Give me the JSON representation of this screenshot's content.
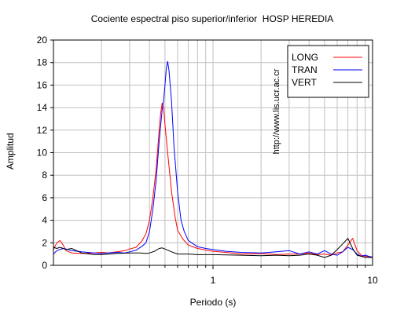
{
  "chart_data": {
    "type": "line",
    "title": "Cociente espectral piso superior/inferior  HOSP HEREDIA",
    "xlabel": "Periodo (s)",
    "ylabel": "Amplitud",
    "x_scale": "log",
    "xlim": [
      0.1,
      10
    ],
    "ylim": [
      0,
      20
    ],
    "x_ticks": [
      {
        "value": 1,
        "label": "1"
      },
      {
        "value": 10,
        "label": "10"
      }
    ],
    "y_ticks": [
      0,
      2,
      4,
      6,
      8,
      10,
      12,
      14,
      16,
      18,
      20
    ],
    "grid": true,
    "legend_position": "top-right",
    "series": [
      {
        "name": "LONG",
        "color": "#ff0000",
        "points": [
          [
            0.1,
            1.4
          ],
          [
            0.105,
            2.0
          ],
          [
            0.11,
            2.2
          ],
          [
            0.115,
            1.8
          ],
          [
            0.12,
            1.3
          ],
          [
            0.13,
            1.1
          ],
          [
            0.15,
            1.05
          ],
          [
            0.18,
            1.1
          ],
          [
            0.2,
            1.15
          ],
          [
            0.22,
            1.1
          ],
          [
            0.25,
            1.2
          ],
          [
            0.28,
            1.3
          ],
          [
            0.3,
            1.45
          ],
          [
            0.33,
            1.6
          ],
          [
            0.36,
            2.2
          ],
          [
            0.38,
            2.8
          ],
          [
            0.4,
            4.0
          ],
          [
            0.42,
            6.0
          ],
          [
            0.44,
            8.5
          ],
          [
            0.46,
            12.0
          ],
          [
            0.47,
            13.5
          ],
          [
            0.48,
            14.4
          ],
          [
            0.49,
            14.0
          ],
          [
            0.5,
            12.5
          ],
          [
            0.52,
            10.0
          ],
          [
            0.55,
            6.5
          ],
          [
            0.58,
            4.2
          ],
          [
            0.6,
            3.1
          ],
          [
            0.65,
            2.3
          ],
          [
            0.7,
            1.8
          ],
          [
            0.8,
            1.5
          ],
          [
            0.9,
            1.35
          ],
          [
            1.0,
            1.25
          ],
          [
            1.2,
            1.15
          ],
          [
            1.5,
            1.0
          ],
          [
            2.0,
            1.05
          ],
          [
            2.5,
            0.95
          ],
          [
            3.0,
            1.0
          ],
          [
            3.5,
            1.0
          ],
          [
            4.0,
            1.1
          ],
          [
            4.5,
            0.95
          ],
          [
            5.0,
            1.0
          ],
          [
            5.5,
            0.9
          ],
          [
            6.0,
            1.1
          ],
          [
            6.5,
            1.2
          ],
          [
            7.0,
            1.8
          ],
          [
            7.5,
            2.4
          ],
          [
            8.0,
            1.3
          ],
          [
            8.5,
            0.9
          ],
          [
            9.0,
            0.8
          ],
          [
            10.0,
            0.75
          ]
        ]
      },
      {
        "name": "TRAN",
        "color": "#0000ff",
        "points": [
          [
            0.1,
            1.0
          ],
          [
            0.105,
            1.3
          ],
          [
            0.11,
            1.4
          ],
          [
            0.115,
            1.5
          ],
          [
            0.12,
            1.45
          ],
          [
            0.13,
            1.3
          ],
          [
            0.15,
            1.2
          ],
          [
            0.18,
            1.1
          ],
          [
            0.2,
            1.05
          ],
          [
            0.22,
            1.1
          ],
          [
            0.25,
            1.15
          ],
          [
            0.28,
            1.1
          ],
          [
            0.3,
            1.2
          ],
          [
            0.33,
            1.35
          ],
          [
            0.36,
            1.7
          ],
          [
            0.38,
            2.0
          ],
          [
            0.4,
            3.0
          ],
          [
            0.42,
            5.0
          ],
          [
            0.44,
            7.5
          ],
          [
            0.46,
            11.0
          ],
          [
            0.48,
            13.8
          ],
          [
            0.49,
            14.6
          ],
          [
            0.5,
            16.0
          ],
          [
            0.51,
            17.5
          ],
          [
            0.52,
            18.1
          ],
          [
            0.53,
            17.3
          ],
          [
            0.55,
            14.5
          ],
          [
            0.57,
            10.5
          ],
          [
            0.6,
            6.5
          ],
          [
            0.63,
            4.0
          ],
          [
            0.66,
            3.0
          ],
          [
            0.7,
            2.2
          ],
          [
            0.8,
            1.65
          ],
          [
            0.9,
            1.5
          ],
          [
            1.0,
            1.4
          ],
          [
            1.2,
            1.25
          ],
          [
            1.5,
            1.15
          ],
          [
            2.0,
            1.1
          ],
          [
            2.5,
            1.2
          ],
          [
            3.0,
            1.3
          ],
          [
            3.5,
            1.0
          ],
          [
            4.0,
            1.2
          ],
          [
            4.5,
            1.0
          ],
          [
            5.0,
            1.3
          ],
          [
            5.5,
            1.0
          ],
          [
            6.0,
            0.9
          ],
          [
            6.5,
            1.2
          ],
          [
            7.0,
            1.6
          ],
          [
            7.5,
            1.4
          ],
          [
            8.0,
            1.0
          ],
          [
            8.5,
            0.8
          ],
          [
            9.0,
            0.9
          ],
          [
            10.0,
            0.7
          ]
        ]
      },
      {
        "name": "VERT",
        "color": "#000000",
        "points": [
          [
            0.1,
            1.6
          ],
          [
            0.105,
            1.5
          ],
          [
            0.11,
            1.6
          ],
          [
            0.115,
            1.5
          ],
          [
            0.12,
            1.4
          ],
          [
            0.13,
            1.5
          ],
          [
            0.14,
            1.3
          ],
          [
            0.15,
            1.1
          ],
          [
            0.18,
            0.95
          ],
          [
            0.2,
            0.95
          ],
          [
            0.25,
            1.05
          ],
          [
            0.3,
            1.1
          ],
          [
            0.35,
            1.1
          ],
          [
            0.38,
            1.05
          ],
          [
            0.4,
            1.1
          ],
          [
            0.43,
            1.25
          ],
          [
            0.46,
            1.5
          ],
          [
            0.48,
            1.55
          ],
          [
            0.5,
            1.45
          ],
          [
            0.55,
            1.2
          ],
          [
            0.6,
            1.0
          ],
          [
            0.7,
            1.0
          ],
          [
            0.8,
            0.95
          ],
          [
            1.0,
            0.95
          ],
          [
            1.5,
            0.9
          ],
          [
            2.0,
            0.85
          ],
          [
            2.5,
            0.9
          ],
          [
            3.0,
            0.85
          ],
          [
            3.5,
            0.9
          ],
          [
            4.0,
            1.0
          ],
          [
            4.5,
            0.9
          ],
          [
            5.0,
            0.7
          ],
          [
            5.5,
            0.9
          ],
          [
            6.0,
            1.4
          ],
          [
            6.5,
            1.9
          ],
          [
            7.0,
            2.4
          ],
          [
            7.5,
            1.5
          ],
          [
            8.0,
            0.9
          ],
          [
            8.5,
            0.8
          ],
          [
            9.0,
            0.7
          ],
          [
            10.0,
            0.7
          ]
        ]
      }
    ]
  },
  "watermark": "http://www.lis.ucr.ac.cr"
}
